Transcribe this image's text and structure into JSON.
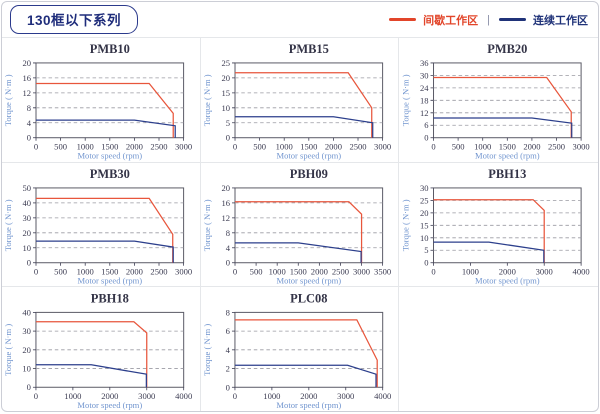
{
  "header": {
    "title": "130框以下系列",
    "legend": [
      {
        "label": "间歇工作区",
        "color": "#e2452a"
      },
      {
        "label": "连续工作区",
        "color": "#203379"
      }
    ],
    "legend_separator": "|"
  },
  "style": {
    "page_border": "#ccced6",
    "cell_border": "#e5e7ea",
    "plot_border": "#5a5a66",
    "grid_line": "#9a9aa2",
    "tick_color": "#3c3c52",
    "axis_label_color": "#7195cf",
    "chart_title_color": "#343447",
    "red": "#e8563c",
    "blue": "#2c3f8c"
  },
  "chart_data": [
    {
      "type": "line",
      "title": "PMB10",
      "xlabel": "Motor speed (rpm)",
      "ylabel": "Torque ( N·m )",
      "xlim": [
        0,
        3000
      ],
      "xstep": 500,
      "ylim": [
        0,
        20
      ],
      "ystep": 4,
      "grid": "dashed-horizontal",
      "series": [
        {
          "name": "间歇工作区",
          "color": "#e8563c",
          "points": [
            [
              0,
              14.5
            ],
            [
              2300,
              14.5
            ],
            [
              2790,
              6.5
            ],
            [
              2790,
              0
            ]
          ]
        },
        {
          "name": "连续工作区",
          "color": "#2c3f8c",
          "points": [
            [
              0,
              4.7
            ],
            [
              2000,
              4.7
            ],
            [
              2830,
              3.2
            ],
            [
              2830,
              0
            ]
          ]
        }
      ]
    },
    {
      "type": "line",
      "title": "PMB15",
      "xlabel": "Motor speed (rpm)",
      "ylabel": "Torque ( N·m )",
      "xlim": [
        0,
        3000
      ],
      "xstep": 500,
      "ylim": [
        0,
        25
      ],
      "ystep": 5,
      "grid": "dashed-horizontal",
      "series": [
        {
          "name": "间歇工作区",
          "color": "#e8563c",
          "points": [
            [
              0,
              21.7
            ],
            [
              2300,
              21.7
            ],
            [
              2780,
              10
            ],
            [
              2780,
              0
            ]
          ]
        },
        {
          "name": "连续工作区",
          "color": "#2c3f8c",
          "points": [
            [
              0,
              7
            ],
            [
              2000,
              7
            ],
            [
              2800,
              5
            ],
            [
              2800,
              0
            ]
          ]
        }
      ]
    },
    {
      "type": "line",
      "title": "PMB20",
      "xlabel": "Motor speed (rpm)",
      "ylabel": "Torque ( N·m )",
      "xlim": [
        0,
        3000
      ],
      "xstep": 500,
      "ylim": [
        0,
        36
      ],
      "ystep": 6,
      "grid": "dashed-horizontal",
      "series": [
        {
          "name": "间歇工作区",
          "color": "#e8563c",
          "points": [
            [
              0,
              29
            ],
            [
              2300,
              29
            ],
            [
              2800,
              12.5
            ],
            [
              2800,
              0
            ]
          ]
        },
        {
          "name": "连续工作区",
          "color": "#2c3f8c",
          "points": [
            [
              0,
              9.5
            ],
            [
              2000,
              9.5
            ],
            [
              2810,
              7
            ],
            [
              2810,
              0
            ]
          ]
        }
      ]
    },
    {
      "type": "line",
      "title": "PMB30",
      "xlabel": "Motor speed (rpm)",
      "ylabel": "Torque ( N·m )",
      "xlim": [
        0,
        3000
      ],
      "xstep": 500,
      "ylim": [
        0,
        50
      ],
      "ystep": 10,
      "grid": "dashed-horizontal",
      "series": [
        {
          "name": "间歇工作区",
          "color": "#e8563c",
          "points": [
            [
              0,
              43
            ],
            [
              2300,
              43
            ],
            [
              2780,
              19
            ],
            [
              2780,
              0
            ]
          ]
        },
        {
          "name": "连续工作区",
          "color": "#2c3f8c",
          "points": [
            [
              0,
              14.5
            ],
            [
              2000,
              14.5
            ],
            [
              2790,
              10.5
            ],
            [
              2790,
              0
            ]
          ]
        }
      ]
    },
    {
      "type": "line",
      "title": "PBH09",
      "xlabel": "Motor speed (rpm)",
      "ylabel": "Torque ( N·m )",
      "xlim": [
        0,
        3500
      ],
      "xstep": 500,
      "ylim": [
        0,
        20
      ],
      "ystep": 4,
      "grid": "dashed-horizontal",
      "series": [
        {
          "name": "间歇工作区",
          "color": "#e8563c",
          "points": [
            [
              0,
              16.3
            ],
            [
              2700,
              16.3
            ],
            [
              3000,
              13
            ],
            [
              3000,
              0
            ]
          ]
        },
        {
          "name": "连续工作区",
          "color": "#2c3f8c",
          "points": [
            [
              0,
              5.3
            ],
            [
              1500,
              5.3
            ],
            [
              2990,
              3
            ],
            [
              2990,
              0
            ]
          ]
        }
      ]
    },
    {
      "type": "line",
      "title": "PBH13",
      "xlabel": "Motor speed (rpm)",
      "ylabel": "Torque ( N·m )",
      "xlim": [
        0,
        4000
      ],
      "xstep": 1000,
      "ylim": [
        0,
        30
      ],
      "ystep": 5,
      "grid": "dashed-horizontal",
      "series": [
        {
          "name": "间歇工作区",
          "color": "#e8563c",
          "points": [
            [
              0,
              25.3
            ],
            [
              2700,
              25.3
            ],
            [
              3000,
              21
            ],
            [
              3000,
              0
            ]
          ]
        },
        {
          "name": "连续工作区",
          "color": "#2c3f8c",
          "points": [
            [
              0,
              8.3
            ],
            [
              1500,
              8.3
            ],
            [
              2990,
              5
            ],
            [
              2990,
              0
            ]
          ]
        }
      ]
    },
    {
      "type": "line",
      "title": "PBH18",
      "xlabel": "Motor speed (rpm)",
      "ylabel": "Torque ( N·m )",
      "xlim": [
        0,
        4000
      ],
      "xstep": 1000,
      "ylim": [
        0,
        40
      ],
      "ystep": 10,
      "grid": "dashed-horizontal",
      "series": [
        {
          "name": "间歇工作区",
          "color": "#e8563c",
          "points": [
            [
              0,
              35
            ],
            [
              2650,
              35
            ],
            [
              3000,
              29
            ],
            [
              3000,
              0
            ]
          ]
        },
        {
          "name": "连续工作区",
          "color": "#2c3f8c",
          "points": [
            [
              0,
              12
            ],
            [
              1500,
              12
            ],
            [
              2990,
              7
            ],
            [
              2990,
              0
            ]
          ]
        }
      ]
    },
    {
      "type": "line",
      "title": "PLC08",
      "xlabel": "Motor speed (rpm)",
      "ylabel": "Torque ( N·m )",
      "xlim": [
        0,
        4000
      ],
      "xstep": 1000,
      "ylim": [
        0,
        8
      ],
      "ystep": 2,
      "grid": "dashed-horizontal",
      "series": [
        {
          "name": "间歇工作区",
          "color": "#e8563c",
          "points": [
            [
              0,
              7.2
            ],
            [
              3300,
              7.2
            ],
            [
              3850,
              2.9
            ],
            [
              3850,
              0
            ]
          ]
        },
        {
          "name": "连续工作区",
          "color": "#2c3f8c",
          "points": [
            [
              0,
              2.35
            ],
            [
              3050,
              2.35
            ],
            [
              3820,
              1.4
            ],
            [
              3820,
              0
            ]
          ]
        }
      ]
    }
  ]
}
